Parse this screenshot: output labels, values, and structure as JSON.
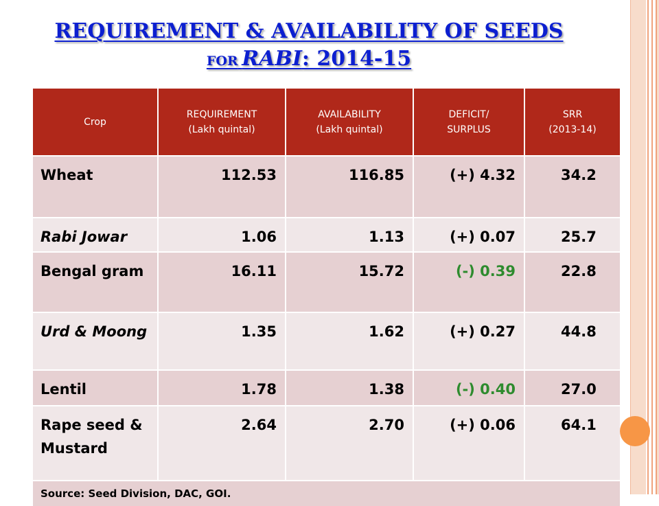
{
  "title": {
    "line1": "Requirement & Availability of Seeds",
    "for": "for",
    "rabi": "Rabi",
    "year": ": 2014-15"
  },
  "table": {
    "headers": [
      [
        "Crop",
        ""
      ],
      [
        "REQUIREMENT",
        "(Lakh quintal)"
      ],
      [
        "AVAILABILITY",
        "(Lakh quintal)"
      ],
      [
        "DEFICIT/",
        "SURPLUS"
      ],
      [
        "SRR",
        "(2013-14)"
      ]
    ],
    "rows": [
      {
        "crop": "Wheat",
        "req": "112.53",
        "avail": "116.85",
        "def": "(+) 4.32",
        "srr": "34.2"
      },
      {
        "crop": "Rabi Jowar",
        "req": "1.06",
        "avail": "1.13",
        "def": "(+) 0.07",
        "srr": "25.7"
      },
      {
        "crop": "Bengal gram",
        "req": "16.11",
        "avail": "15.72",
        "def": "(-) 0.39",
        "srr": "22.8"
      },
      {
        "crop": "Urd & Moong",
        "req": "1.35",
        "avail": "1.62",
        "def": "(+) 0.27",
        "srr": "44.8"
      },
      {
        "crop": "Lentil",
        "req": "1.78",
        "avail": "1.38",
        "def": "(-) 0.40",
        "srr": "27.0"
      },
      {
        "crop": "Rape seed & Mustard",
        "req": "2.64",
        "avail": "2.70",
        "def": "(+) 0.06",
        "srr": "64.1"
      }
    ],
    "source": "Source: Seed Division, DAC, GOI."
  },
  "colors": {
    "title": "#0c1fd0",
    "header_bg": "#b0281a",
    "row_dark": "#e6d0d2",
    "row_light": "#f0e7e8",
    "deficit": "#2e8b2e",
    "accent_circle": "#f79646"
  }
}
